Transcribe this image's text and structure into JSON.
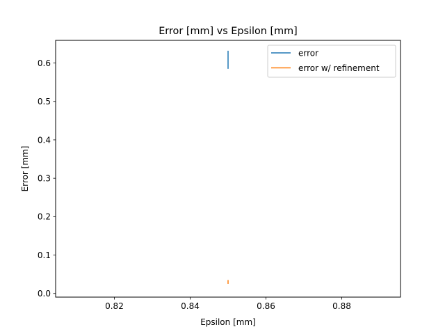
{
  "chart_data": {
    "type": "line",
    "title": "Error [mm] vs Epsilon [mm]",
    "xlabel": "Epsilon [mm]",
    "ylabel": "Error [mm]",
    "xlim": [
      0.8045,
      0.8955
    ],
    "ylim": [
      -0.0095,
      0.659
    ],
    "xticks": [
      0.82,
      0.84,
      0.86,
      0.88
    ],
    "xtick_labels": [
      "0.82",
      "0.84",
      "0.86",
      "0.88"
    ],
    "yticks": [
      0.0,
      0.1,
      0.2,
      0.3,
      0.4,
      0.5,
      0.6
    ],
    "ytick_labels": [
      "0.0",
      "0.1",
      "0.2",
      "0.3",
      "0.4",
      "0.5",
      "0.6"
    ],
    "grid": false,
    "legend_position": "upper right",
    "series": [
      {
        "name": "error",
        "color": "#1f77b4",
        "x": [
          0.85,
          0.85
        ],
        "y": [
          0.585,
          0.632
        ]
      },
      {
        "name": "error w/ refinement",
        "color": "#ff7f0e",
        "x": [
          0.85,
          0.85
        ],
        "y": [
          0.025,
          0.035
        ]
      }
    ]
  }
}
